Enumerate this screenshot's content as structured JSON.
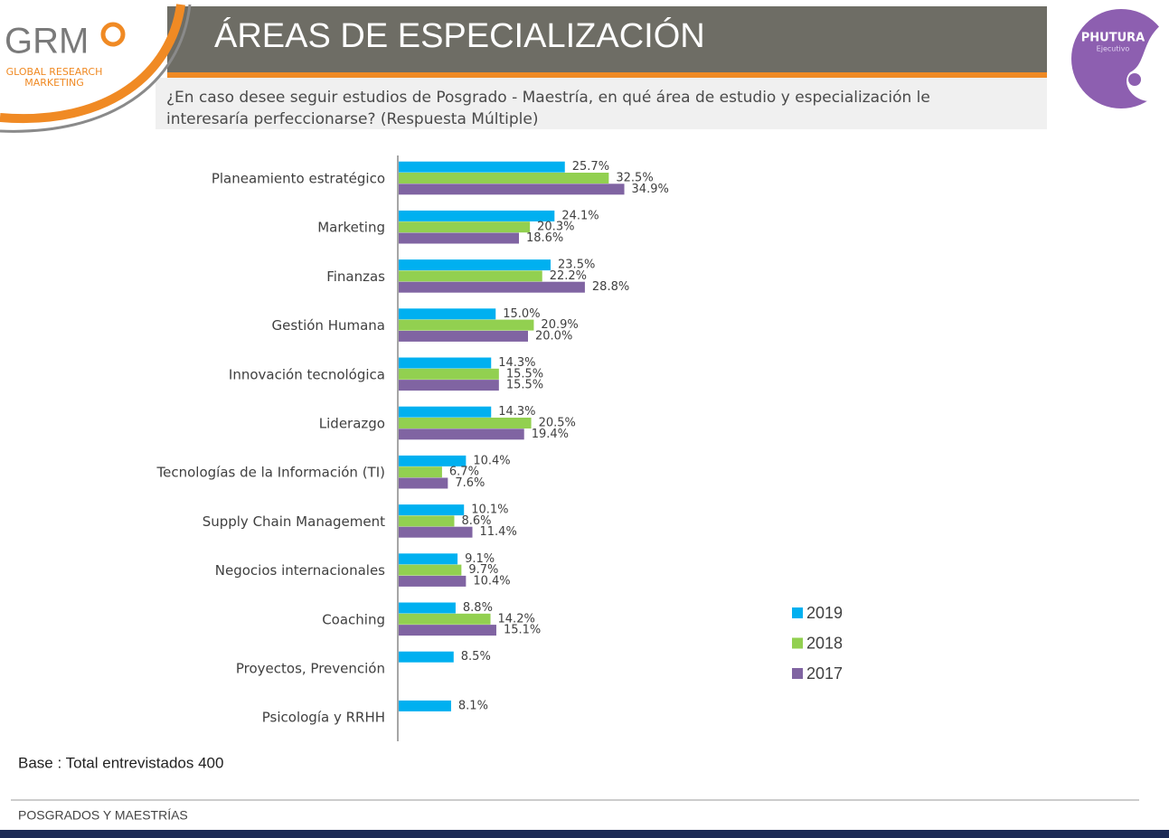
{
  "header": {
    "title": "ÁREAS DE ESPECIALIZACIÓN",
    "question_line1": "¿En caso desee seguir estudios de Posgrado - Maestría, en qué área de estudio y especialización le",
    "question_line2": "interesaría perfeccionarse? (Respuesta Múltiple)"
  },
  "logos": {
    "grm": {
      "name": "GRM",
      "line1": "GLOBAL RESEARCH",
      "line2": "MARKETING"
    },
    "phutura": {
      "name": "PHUTURA",
      "sub": "Ejecutivo"
    }
  },
  "note": "Base : Total entrevistados 400",
  "footer": "POSGRADOS Y MAESTRÍAS",
  "chart_data": {
    "type": "bar",
    "orientation": "horizontal",
    "categories": [
      "Planeamiento estratégico",
      "Marketing",
      "Finanzas",
      "Gestión Humana",
      "Innovación tecnológica",
      "Liderazgo",
      "Tecnologías de la Información (TI)",
      "Supply Chain Management",
      "Negocios internacionales",
      "Coaching",
      "Proyectos, Prevención",
      "Psicología y RRHH"
    ],
    "series": [
      {
        "name": "2019",
        "color": "#00b0f0",
        "values": [
          25.7,
          24.1,
          23.5,
          15.0,
          14.3,
          14.3,
          10.4,
          10.1,
          9.1,
          8.8,
          8.5,
          8.1
        ],
        "value_labels": [
          "25.7%",
          "24.1%",
          "23.5%",
          "15.0%",
          "14.3%",
          "14.3%",
          "10.4%",
          "10.1%",
          "9.1%",
          "8.8%",
          "8.5%",
          "8.1%"
        ]
      },
      {
        "name": "2018",
        "color": "#92d050",
        "values": [
          32.5,
          20.3,
          22.2,
          20.9,
          15.5,
          20.5,
          6.7,
          8.6,
          9.7,
          14.2,
          null,
          null
        ],
        "value_labels": [
          "32.5%",
          "20.3%",
          "22.2%",
          "20.9%",
          "15.5%",
          "20.5%",
          "6.7%",
          "8.6%",
          "9.7%",
          "14.2%",
          null,
          null
        ]
      },
      {
        "name": "2017",
        "color": "#8064a2",
        "values": [
          34.9,
          18.6,
          28.8,
          20.0,
          15.5,
          19.4,
          7.6,
          11.4,
          10.4,
          15.1,
          null,
          null
        ],
        "value_labels": [
          "34.9%",
          "18.6%",
          "28.8%",
          "20.0%",
          "15.5%",
          "19.4%",
          "7.6%",
          "11.4%",
          "10.4%",
          "15.1%",
          null,
          null
        ]
      }
    ],
    "xlim": [
      0,
      60
    ],
    "legend": "right"
  }
}
